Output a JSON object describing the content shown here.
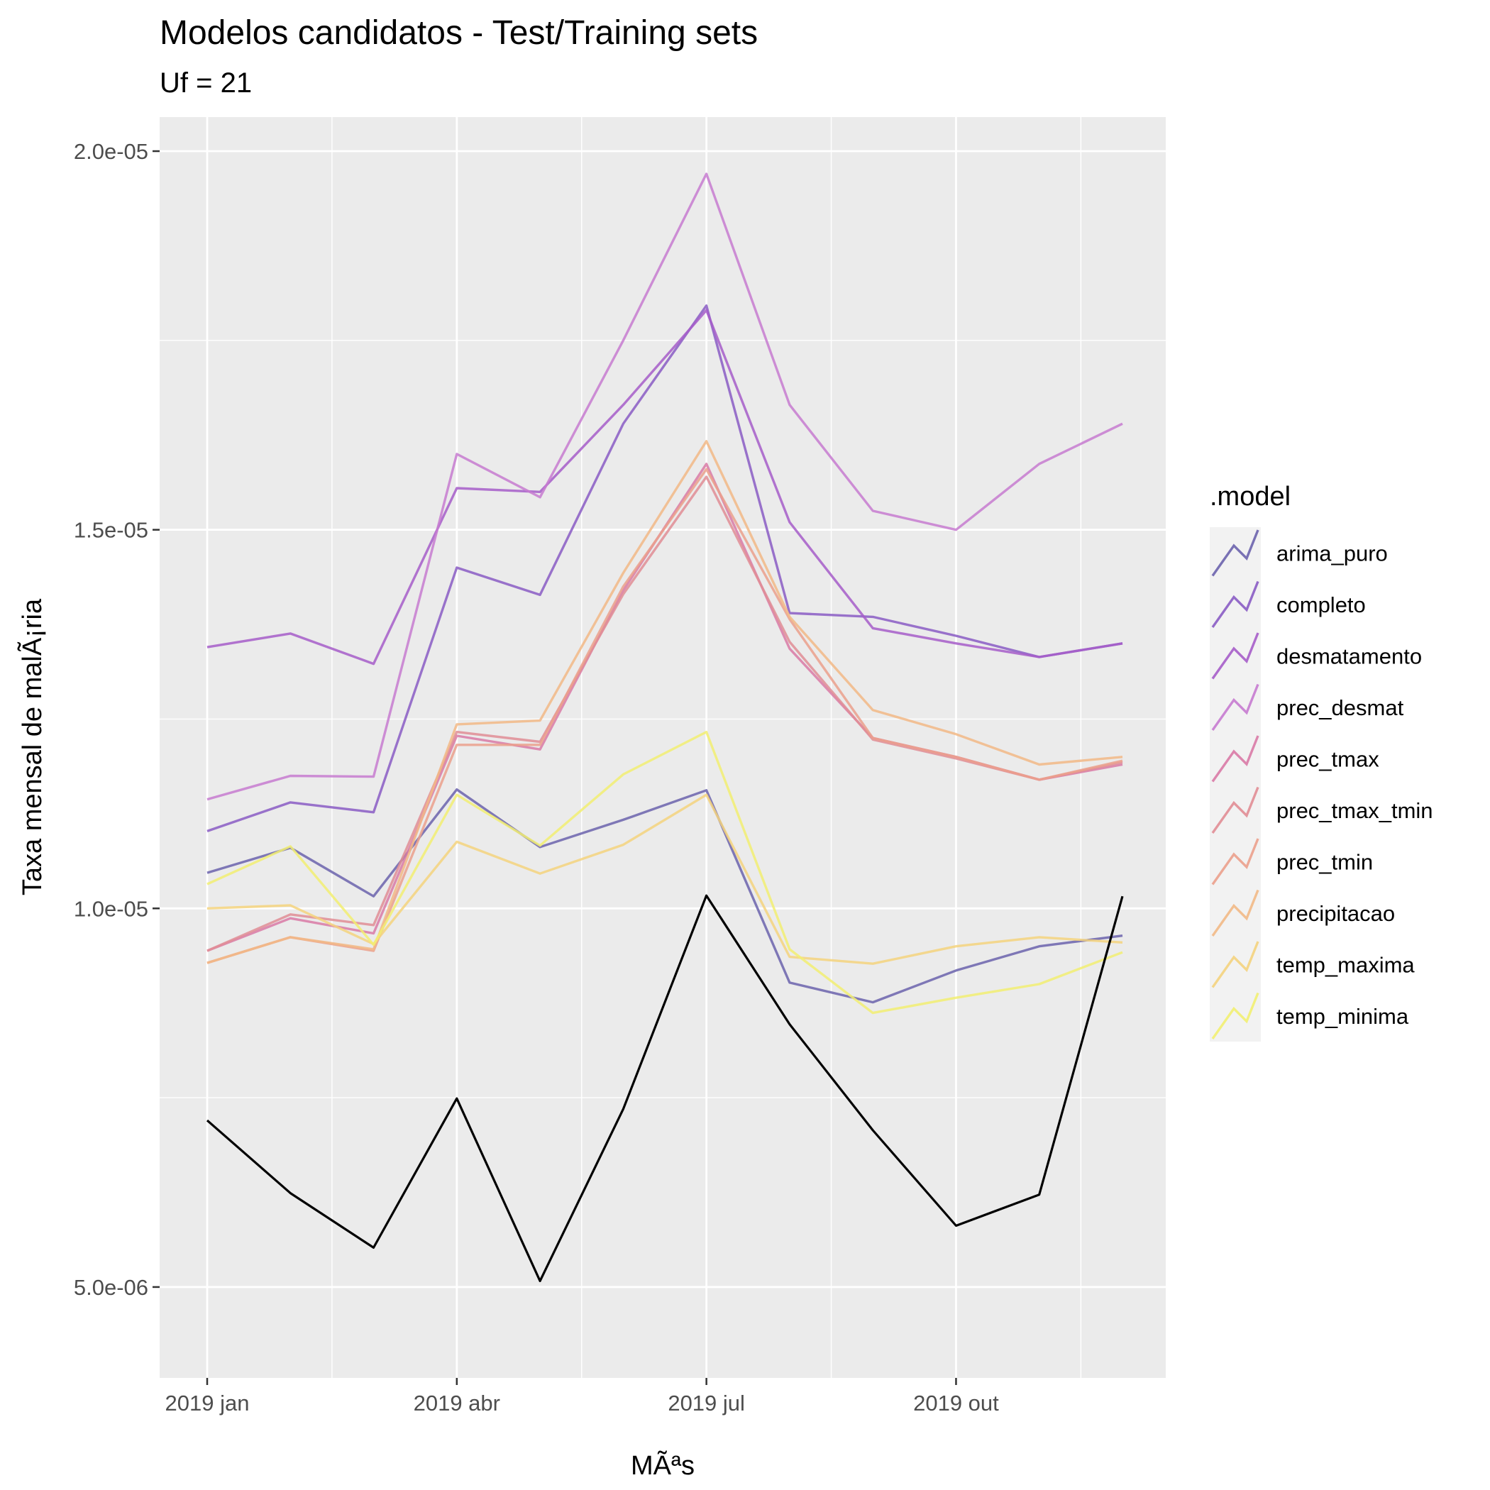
{
  "chart_data": {
    "type": "line",
    "title": "Modelos candidatos - Test/Training sets",
    "subtitle": "Uf = 21",
    "xlabel": "MÃªs",
    "ylabel": "Taxa mensal de malÃ¡ria",
    "x": [
      "2019-01",
      "2019-02",
      "2019-03",
      "2019-04",
      "2019-05",
      "2019-06",
      "2019-07",
      "2019-08",
      "2019-09",
      "2019-10",
      "2019-11",
      "2019-12"
    ],
    "x_ticks": [
      {
        "label": "2019 jan",
        "index": 0
      },
      {
        "label": "2019 abr",
        "index": 3
      },
      {
        "label": "2019 jul",
        "index": 6
      },
      {
        "label": "2019 out",
        "index": 9
      }
    ],
    "y_ticks": [
      {
        "label": "5.0e-06",
        "value": 5e-06
      },
      {
        "label": "1.0e-05",
        "value": 1e-05
      },
      {
        "label": "1.5e-05",
        "value": 1.5e-05
      },
      {
        "label": "2.0e-05",
        "value": 2e-05
      }
    ],
    "ylim": [
      3.8e-06,
      2.045e-05
    ],
    "grid": true,
    "legend": {
      "title": ".model",
      "position": "right"
    },
    "observed": {
      "color": "#000000",
      "values": [
        7.2e-06,
        6.24e-06,
        5.52e-06,
        7.49e-06,
        5.08e-06,
        7.35e-06,
        1.017e-05,
        8.47e-06,
        7.07e-06,
        5.81e-06,
        6.22e-06,
        1.016e-05
      ]
    },
    "series": [
      {
        "name": "arima_puro",
        "color": "#6b63ad",
        "values": [
          1.047e-05,
          1.08e-05,
          1.016e-05,
          1.157e-05,
          1.081e-05,
          1.117e-05,
          1.156e-05,
          9.02e-06,
          8.76e-06,
          9.18e-06,
          9.5e-06,
          9.64e-06
        ]
      },
      {
        "name": "completo",
        "color": "#8a5cc4",
        "values": [
          1.102e-05,
          1.14e-05,
          1.127e-05,
          1.45e-05,
          1.414e-05,
          1.64e-05,
          1.796e-05,
          1.39e-05,
          1.385e-05,
          1.36e-05,
          1.332e-05,
          1.35e-05
        ]
      },
      {
        "name": "desmatamento",
        "color": "#a65dc9",
        "values": [
          1.345e-05,
          1.363e-05,
          1.323e-05,
          1.555e-05,
          1.55e-05,
          1.665e-05,
          1.79e-05,
          1.51e-05,
          1.37e-05,
          1.35e-05,
          1.332e-05,
          1.35e-05
        ]
      },
      {
        "name": "prec_desmat",
        "color": "#c77bd0",
        "values": [
          1.144e-05,
          1.175e-05,
          1.174e-05,
          1.6e-05,
          1.543e-05,
          1.75e-05,
          1.97e-05,
          1.665e-05,
          1.525e-05,
          1.5e-05,
          1.587e-05,
          1.64e-05
        ]
      },
      {
        "name": "prec_tmax",
        "color": "#d97aa6",
        "values": [
          9.44e-06,
          9.87e-06,
          9.67e-06,
          1.228e-05,
          1.21e-05,
          1.42e-05,
          1.587e-05,
          1.343e-05,
          1.225e-05,
          1.2e-05,
          1.17e-05,
          1.19e-05
        ]
      },
      {
        "name": "prec_tmax_tmin",
        "color": "#e18d95",
        "values": [
          9.44e-06,
          9.92e-06,
          9.78e-06,
          1.233e-05,
          1.22e-05,
          1.415e-05,
          1.57e-05,
          1.352e-05,
          1.223e-05,
          1.198e-05,
          1.17e-05,
          1.193e-05
        ]
      },
      {
        "name": "prec_tmin",
        "color": "#eba08c",
        "values": [
          9.28e-06,
          9.62e-06,
          9.44e-06,
          1.216e-05,
          1.216e-05,
          1.425e-05,
          1.58e-05,
          1.382e-05,
          1.225e-05,
          1.2e-05,
          1.17e-05,
          1.195e-05
        ]
      },
      {
        "name": "precipitacao",
        "color": "#f2b986",
        "values": [
          9.28e-06,
          9.62e-06,
          9.46e-06,
          1.243e-05,
          1.248e-05,
          1.443e-05,
          1.617e-05,
          1.385e-05,
          1.262e-05,
          1.23e-05,
          1.19e-05,
          1.2e-05
        ]
      },
      {
        "name": "temp_maxima",
        "color": "#f4d37e",
        "values": [
          1e-05,
          1.004e-05,
          9.53e-06,
          1.088e-05,
          1.046e-05,
          1.084e-05,
          1.15e-05,
          9.36e-06,
          9.27e-06,
          9.5e-06,
          9.62e-06,
          9.55e-06
        ]
      },
      {
        "name": "temp_minima",
        "color": "#f2ef72",
        "values": [
          1.032e-05,
          1.082e-05,
          9.52e-06,
          1.15e-05,
          1.083e-05,
          1.177e-05,
          1.233e-05,
          9.46e-06,
          8.62e-06,
          8.82e-06,
          9e-06,
          9.42e-06
        ]
      }
    ]
  }
}
